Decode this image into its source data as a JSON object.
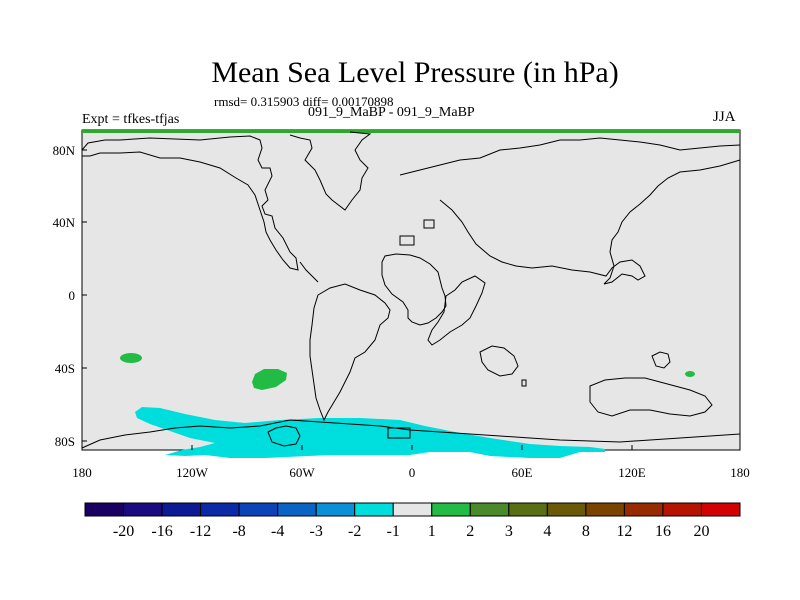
{
  "title": "Mean Sea Level Pressure (in hPa)",
  "stats": "rmsd= 0.315903 diff= 0.00170898",
  "experiment": "Expt = tfkes-tfjas",
  "comparison": "091_9_MaBP - 091_9_MaBP",
  "season": "JJA",
  "colors": {
    "ocean_background": "#e6e6e6",
    "top_strip": "#2ca82c",
    "coastline": "#000000"
  },
  "map": {
    "projection": "cylindrical equidistant",
    "lon_range": [
      -180,
      180
    ],
    "lat_range": [
      -90,
      90
    ],
    "x_ticks": [
      "180",
      "120W",
      "60W",
      "0",
      "60E",
      "120E",
      "180"
    ],
    "y_ticks": [
      "80N",
      "40N",
      "0",
      "40S",
      "80S"
    ],
    "anomaly_regions": [
      {
        "label": "green-patch-south-pacific",
        "color": "#22bb44"
      },
      {
        "label": "green-patch-southeast-pacific",
        "color": "#22bb44"
      },
      {
        "label": "green-patch-south-of-australia",
        "color": "#22bb44"
      },
      {
        "label": "cyan-band-southern-ocean",
        "color": "#00dddd"
      }
    ]
  },
  "colorbar": {
    "colors": [
      "#1a0060",
      "#1c0a80",
      "#0c1a96",
      "#0a2aa8",
      "#0a44b8",
      "#0a64c4",
      "#0a90d4",
      "#00dddd",
      "#e6e6e6",
      "#22bb44",
      "#4a8a2a",
      "#5a6e14",
      "#6a5a08",
      "#7a4400",
      "#982a00",
      "#b41400",
      "#d20000"
    ],
    "labels": [
      "-20",
      "-16",
      "-12",
      "-8",
      "-4",
      "-3",
      "-2",
      "-1",
      "1",
      "2",
      "3",
      "4",
      "8",
      "12",
      "16",
      "20"
    ]
  }
}
